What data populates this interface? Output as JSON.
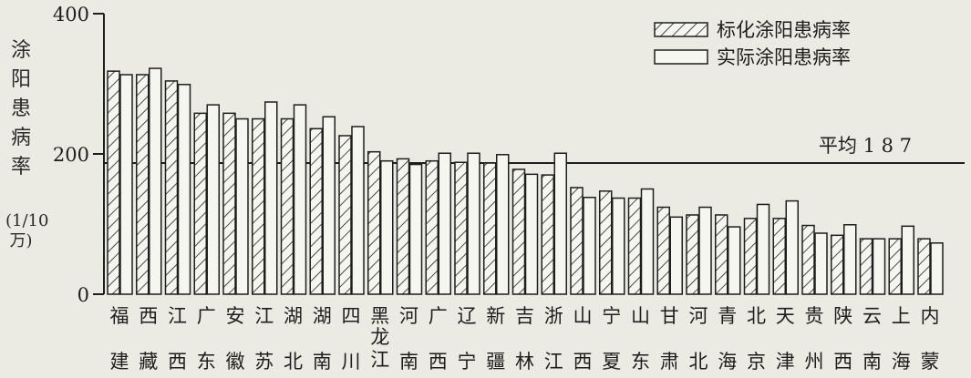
{
  "chart_data": {
    "type": "bar",
    "ylabel": "涂阳患病率",
    "ylabel_unit": "(1/10万)",
    "ylim": [
      0,
      400
    ],
    "yticks": [
      0,
      200,
      400
    ],
    "grid": false,
    "legend_position": "top-right",
    "categories": [
      "福建",
      "西藏",
      "江西",
      "广东",
      "安徽",
      "江苏",
      "湖北",
      "湖南",
      "四川",
      "黑龙江",
      "河南",
      "广西",
      "辽宁",
      "新疆",
      "吉林",
      "浙江",
      "山西",
      "宁夏",
      "山东",
      "甘肃",
      "河北",
      "青海",
      "北京",
      "天津",
      "贵州",
      "陕西",
      "云南",
      "上海",
      "内蒙"
    ],
    "series": [
      {
        "name": "标化涂阳患病率",
        "pattern": "hatched",
        "values": [
          318,
          313,
          304,
          258,
          258,
          250,
          250,
          236,
          226,
          203,
          193,
          190,
          188,
          187,
          178,
          170,
          152,
          147,
          137,
          124,
          113,
          113,
          108,
          108,
          98,
          84,
          79,
          79,
          79
        ]
      },
      {
        "name": "实际涂阳患病率",
        "pattern": "plain",
        "values": [
          313,
          322,
          299,
          270,
          250,
          274,
          270,
          253,
          239,
          190,
          185,
          201,
          201,
          199,
          171,
          201,
          138,
          137,
          150,
          110,
          124,
          96,
          128,
          133,
          87,
          99,
          79,
          97,
          73
        ]
      }
    ],
    "reference_line": {
      "value": 187,
      "label": "平均 1 8 7"
    }
  },
  "colors": {
    "background": "#ebeae3",
    "ink": "#1e1e1e",
    "bar_fill": "#f6f6f1"
  }
}
